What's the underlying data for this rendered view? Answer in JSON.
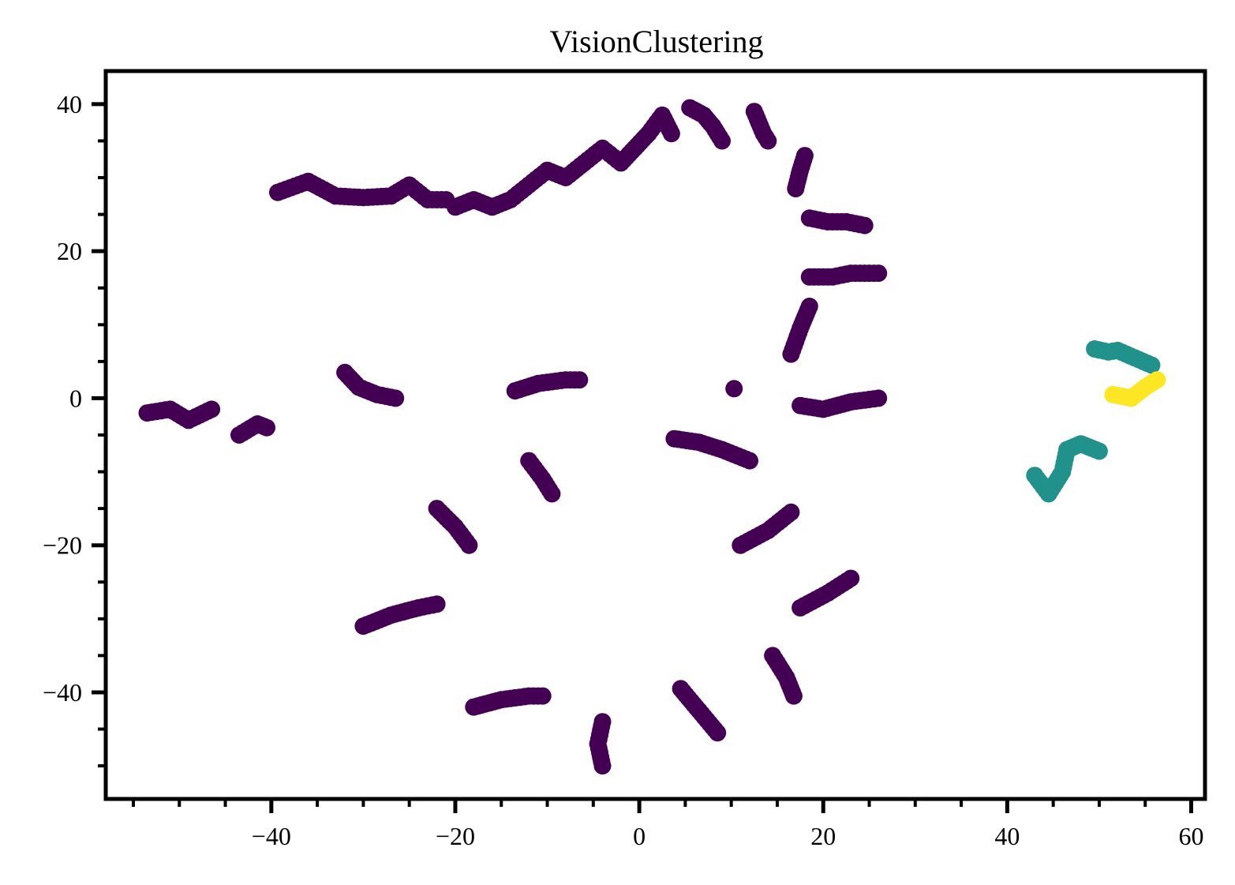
{
  "chart_data": {
    "type": "scatter",
    "title": "VisionClustering",
    "xlabel": "",
    "ylabel": "",
    "xlim": [
      -58,
      61.5
    ],
    "ylim": [
      -54.5,
      44.5
    ],
    "xticks": [
      -40,
      -20,
      0,
      20,
      40,
      60
    ],
    "yticks": [
      -40,
      -20,
      0,
      20,
      40
    ],
    "xtick_labels": [
      "−40",
      "−20",
      "0",
      "20",
      "40",
      "60"
    ],
    "ytick_labels": [
      "−40",
      "−20",
      "0",
      "20",
      "40"
    ],
    "x_minor_step": 5,
    "y_minor_step": 5,
    "grid": false,
    "legend": "none",
    "colors": {
      "0": "#440154",
      "1": "#21918c",
      "2": "#fde725"
    },
    "segments": [
      {
        "cluster": 0,
        "points": [
          [
            -39.3,
            28
          ],
          [
            -36,
            29.5
          ],
          [
            -33,
            27.5
          ],
          [
            -30,
            27.3
          ],
          [
            -27,
            27.5
          ],
          [
            -25,
            29
          ],
          [
            -23,
            27
          ],
          [
            -21,
            27
          ]
        ]
      },
      {
        "cluster": 0,
        "points": [
          [
            -20,
            26
          ],
          [
            -18,
            27
          ],
          [
            -16,
            26
          ],
          [
            -14,
            27
          ],
          [
            -12,
            29
          ],
          [
            -10,
            31
          ],
          [
            -8,
            30
          ],
          [
            -6,
            32
          ],
          [
            -4,
            34
          ],
          [
            -2,
            32
          ],
          [
            -0.5,
            34
          ],
          [
            1,
            36
          ],
          [
            2.5,
            38.5
          ],
          [
            3.5,
            36
          ]
        ]
      },
      {
        "cluster": 0,
        "points": [
          [
            5.5,
            39.5
          ],
          [
            7,
            38.5
          ],
          [
            8,
            37
          ],
          [
            9,
            35
          ]
        ]
      },
      {
        "cluster": 0,
        "points": [
          [
            12.5,
            39
          ],
          [
            13.5,
            36
          ],
          [
            14,
            35
          ]
        ]
      },
      {
        "cluster": 0,
        "points": [
          [
            18,
            33
          ],
          [
            17.5,
            31
          ],
          [
            17,
            28.5
          ]
        ]
      },
      {
        "cluster": 0,
        "points": [
          [
            18.5,
            24.5
          ],
          [
            20.5,
            24
          ],
          [
            22.5,
            24
          ],
          [
            24.5,
            23.5
          ]
        ]
      },
      {
        "cluster": 0,
        "points": [
          [
            18.5,
            16.5
          ],
          [
            21,
            16.5
          ],
          [
            23,
            17
          ],
          [
            26,
            17
          ]
        ]
      },
      {
        "cluster": 0,
        "points": [
          [
            18.5,
            12.5
          ],
          [
            17.5,
            9.5
          ],
          [
            16.5,
            6
          ]
        ]
      },
      {
        "cluster": 0,
        "points": [
          [
            17.5,
            -1
          ],
          [
            20,
            -1.5
          ],
          [
            23,
            -0.5
          ],
          [
            26,
            0
          ]
        ]
      },
      {
        "cluster": 0,
        "points": [
          [
            10.3,
            1.3
          ]
        ]
      },
      {
        "cluster": 0,
        "points": [
          [
            3.8,
            -5.5
          ],
          [
            6.5,
            -6
          ],
          [
            9,
            -7
          ],
          [
            12,
            -8.5
          ]
        ]
      },
      {
        "cluster": 0,
        "points": [
          [
            16.5,
            -15.5
          ],
          [
            14,
            -18
          ],
          [
            11,
            -20
          ]
        ]
      },
      {
        "cluster": 0,
        "points": [
          [
            23,
            -24.5
          ],
          [
            20.5,
            -26.5
          ],
          [
            17.5,
            -28.5
          ]
        ]
      },
      {
        "cluster": 0,
        "points": [
          [
            14.5,
            -35
          ],
          [
            16,
            -38
          ],
          [
            16.8,
            -40.5
          ]
        ]
      },
      {
        "cluster": 0,
        "points": [
          [
            4.5,
            -39.5
          ],
          [
            6.5,
            -42.5
          ],
          [
            8.5,
            -45.5
          ]
        ]
      },
      {
        "cluster": 0,
        "points": [
          [
            -4,
            -44
          ],
          [
            -4.5,
            -47
          ],
          [
            -4,
            -50
          ]
        ]
      },
      {
        "cluster": 0,
        "points": [
          [
            -18,
            -42
          ],
          [
            -15,
            -41
          ],
          [
            -12,
            -40.5
          ],
          [
            -10.5,
            -40.5
          ]
        ]
      },
      {
        "cluster": 0,
        "points": [
          [
            -30,
            -31
          ],
          [
            -27,
            -29.5
          ],
          [
            -24,
            -28.5
          ],
          [
            -22,
            -28
          ]
        ]
      },
      {
        "cluster": 0,
        "points": [
          [
            -22,
            -15
          ],
          [
            -20,
            -17.5
          ],
          [
            -18.5,
            -20
          ]
        ]
      },
      {
        "cluster": 0,
        "points": [
          [
            -12,
            -8.5
          ],
          [
            -10.5,
            -11
          ],
          [
            -9.5,
            -13
          ]
        ]
      },
      {
        "cluster": 0,
        "points": [
          [
            -13.5,
            1
          ],
          [
            -11,
            2
          ],
          [
            -8,
            2.5
          ],
          [
            -6.5,
            2.5
          ]
        ]
      },
      {
        "cluster": 0,
        "points": [
          [
            -32,
            3.5
          ],
          [
            -30.5,
            1.5
          ],
          [
            -28.5,
            0.5
          ],
          [
            -26.5,
            0
          ]
        ]
      },
      {
        "cluster": 0,
        "points": [
          [
            -43.5,
            -5
          ],
          [
            -41.5,
            -3.5
          ],
          [
            -40.5,
            -4
          ]
        ]
      },
      {
        "cluster": 0,
        "points": [
          [
            -53.5,
            -2
          ],
          [
            -51,
            -1.5
          ],
          [
            -49,
            -3
          ],
          [
            -46.5,
            -1.5
          ]
        ]
      },
      {
        "cluster": 1,
        "points": [
          [
            49.5,
            6.7
          ],
          [
            51,
            6.3
          ],
          [
            52,
            6.5
          ],
          [
            55.7,
            4.5
          ]
        ]
      },
      {
        "cluster": 1,
        "points": [
          [
            43,
            -10.5
          ],
          [
            44.5,
            -13
          ],
          [
            46,
            -10
          ],
          [
            46.5,
            -7
          ],
          [
            48,
            -6.2
          ],
          [
            50,
            -7.2
          ]
        ]
      },
      {
        "cluster": 2,
        "points": [
          [
            51.5,
            0.5
          ],
          [
            53.5,
            0
          ],
          [
            55,
            1.5
          ],
          [
            56.3,
            2.5
          ]
        ]
      }
    ]
  }
}
